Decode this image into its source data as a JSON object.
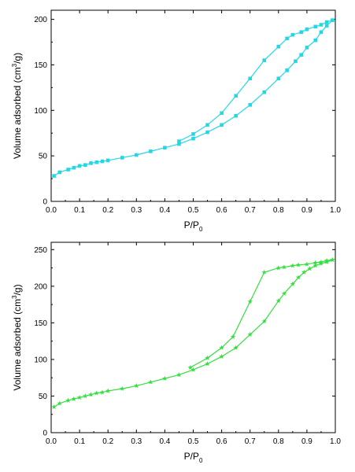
{
  "chart_data": [
    {
      "type": "line",
      "color": "#22d8e6",
      "marker": "square",
      "xlabel": {
        "main": "P/P",
        "sub": "0"
      },
      "ylabel": {
        "pre": "Volume adsorbed (cm",
        "sup": "3",
        "post": "/g)"
      },
      "xlim": [
        0.0,
        1.0
      ],
      "ylim": [
        0,
        210
      ],
      "xticks": [
        0.0,
        0.1,
        0.2,
        0.3,
        0.4,
        0.5,
        0.6,
        0.7,
        0.8,
        0.9,
        1.0
      ],
      "xtick_labels": [
        "0.0",
        "0.1",
        "0.2",
        "0.3",
        "0.4",
        "0.5",
        "0.6",
        "0.7",
        "0.8",
        "0.9",
        "1.0"
      ],
      "yticks": [
        0,
        50,
        100,
        150,
        200
      ],
      "ytick_labels": [
        "0",
        "50",
        "100",
        "150",
        "200"
      ],
      "series": [
        {
          "x": [
            0.01,
            0.03,
            0.06,
            0.08,
            0.1,
            0.12,
            0.14,
            0.16,
            0.18,
            0.2,
            0.25,
            0.3,
            0.35,
            0.4,
            0.45,
            0.5,
            0.55,
            0.6,
            0.65,
            0.7,
            0.75,
            0.8,
            0.83,
            0.86,
            0.88,
            0.9,
            0.93,
            0.95,
            0.97,
            0.99
          ],
          "y": [
            28,
            32,
            35,
            37,
            39,
            40,
            42,
            43,
            44,
            45,
            48,
            51,
            55,
            59,
            63,
            69,
            76,
            84,
            94,
            106,
            120,
            135,
            144,
            154,
            161,
            169,
            177,
            186,
            193,
            199
          ]
        },
        {
          "x": [
            0.99,
            0.97,
            0.95,
            0.93,
            0.9,
            0.88,
            0.85,
            0.83,
            0.8,
            0.75,
            0.7,
            0.65,
            0.6,
            0.55,
            0.5,
            0.45
          ],
          "y": [
            199,
            197,
            194,
            192,
            189,
            186,
            183,
            179,
            170,
            155,
            135,
            116,
            97,
            84,
            74,
            66
          ]
        }
      ]
    },
    {
      "type": "line",
      "color": "#33e03d",
      "marker": "star",
      "xlabel": {
        "main": "P/P",
        "sub": "0"
      },
      "ylabel": {
        "pre": "Volume adsorbed (cm",
        "sup": "3",
        "post": "/g)"
      },
      "xlim": [
        0.0,
        1.0
      ],
      "ylim": [
        0,
        260
      ],
      "xticks": [
        0.0,
        0.1,
        0.2,
        0.3,
        0.4,
        0.5,
        0.6,
        0.7,
        0.8,
        0.9,
        1.0
      ],
      "xtick_labels": [
        "0.0",
        "0.1",
        "0.2",
        "0.3",
        "0.4",
        "0.5",
        "0.6",
        "0.7",
        "0.8",
        "0.9",
        "1.0"
      ],
      "yticks": [
        0,
        50,
        100,
        150,
        200,
        250
      ],
      "ytick_labels": [
        "0",
        "50",
        "100",
        "150",
        "200",
        "250"
      ],
      "series": [
        {
          "x": [
            0.01,
            0.03,
            0.06,
            0.08,
            0.1,
            0.12,
            0.14,
            0.16,
            0.18,
            0.2,
            0.25,
            0.3,
            0.35,
            0.4,
            0.45,
            0.5,
            0.55,
            0.6,
            0.65,
            0.7,
            0.75,
            0.8,
            0.82,
            0.85,
            0.87,
            0.89,
            0.91,
            0.93,
            0.95,
            0.97,
            0.99
          ],
          "y": [
            35,
            40,
            44,
            46,
            48,
            50,
            52,
            54,
            55,
            57,
            60,
            64,
            69,
            74,
            79,
            86,
            94,
            104,
            116,
            134,
            152,
            180,
            190,
            203,
            212,
            219,
            224,
            228,
            231,
            233,
            236
          ]
        },
        {
          "x": [
            0.99,
            0.97,
            0.95,
            0.93,
            0.9,
            0.87,
            0.85,
            0.82,
            0.8,
            0.75,
            0.7,
            0.64,
            0.6,
            0.55,
            0.49
          ],
          "y": [
            236,
            235,
            233,
            232,
            230,
            229,
            228,
            226,
            225,
            219,
            179,
            131,
            116,
            102,
            89
          ]
        }
      ]
    }
  ]
}
